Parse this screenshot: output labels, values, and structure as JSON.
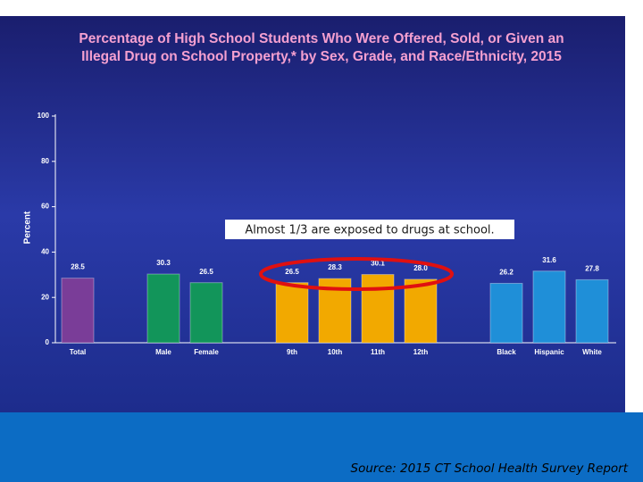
{
  "chart_data": {
    "type": "bar",
    "title": "Percentage of High School Students Who Were Offered, Sold, or Given an",
    "subtitle": "Illegal Drug on School Property,* by Sex, Grade, and Race/Ethnicity, 2015",
    "y_label": "Percent",
    "categories": [
      "Total",
      "Male",
      "Female",
      "9th",
      "10th",
      "11th",
      "12th",
      "Black",
      "Hispanic",
      "White"
    ],
    "values": [
      28.5,
      30.3,
      26.5,
      26.5,
      28.3,
      30.1,
      28.0,
      26.2,
      31.6,
      27.8
    ],
    "value_labels": [
      "28.5",
      "30.3",
      "26.5",
      "26.5",
      "28.3",
      "30.1",
      "28.0",
      "26.2",
      "31.6",
      "27.8"
    ],
    "colors": [
      "#7a3d98",
      "#12955a",
      "#12955a",
      "#f2a900",
      "#f2a900",
      "#f2a900",
      "#f2a900",
      "#1f8fd8",
      "#1f8fd8",
      "#1f8fd8"
    ],
    "ylim": [
      0,
      100
    ],
    "yticks": [
      0,
      20,
      40,
      60,
      80,
      100
    ],
    "annotation": "Almost 1/3 are exposed to drugs at school.",
    "source": "Source: 2015 CT School Health Survey Report"
  }
}
